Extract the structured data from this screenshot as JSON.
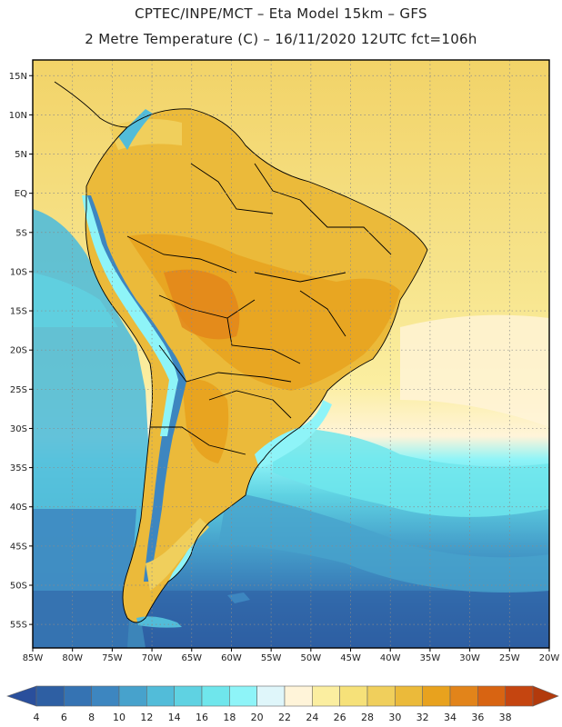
{
  "header": {
    "line1": "CPTEC/INPE/MCT –  Eta Model 15km – GFS",
    "line2": "2 Metre Temperature (C) – 16/11/2020 12UTC fct=106h"
  },
  "map": {
    "lon_ticks": [
      "85W",
      "80W",
      "75W",
      "70W",
      "65W",
      "60W",
      "55W",
      "50W",
      "45W",
      "40W",
      "35W",
      "30W",
      "25W",
      "20W"
    ],
    "lat_ticks": [
      "15N",
      "10N",
      "5N",
      "EQ",
      "5S",
      "10S",
      "15S",
      "20S",
      "25S",
      "30S",
      "35S",
      "40S",
      "45S",
      "50S",
      "55S"
    ],
    "lon_range": [
      -85,
      -20
    ],
    "lat_range": [
      17,
      -58
    ]
  },
  "colorbar": {
    "labels": [
      "4",
      "6",
      "8",
      "10",
      "12",
      "14",
      "16",
      "18",
      "20",
      "22",
      "24",
      "26",
      "28",
      "30",
      "32",
      "34",
      "36",
      "38"
    ],
    "colors": [
      "#2e5fa3",
      "#3573b3",
      "#3d86c0",
      "#47a2cc",
      "#52bcd9",
      "#5fd2e2",
      "#6fe6ec",
      "#8ef4f8",
      "#dff6fa",
      "#fff4d9",
      "#fbeea0",
      "#f6e179",
      "#f0cf5c",
      "#ebba3a",
      "#e8a21e",
      "#e2841a",
      "#d86412",
      "#c54510"
    ],
    "low_arrow_color": "#2a4f9c",
    "high_arrow_color": "#b23a0c"
  }
}
